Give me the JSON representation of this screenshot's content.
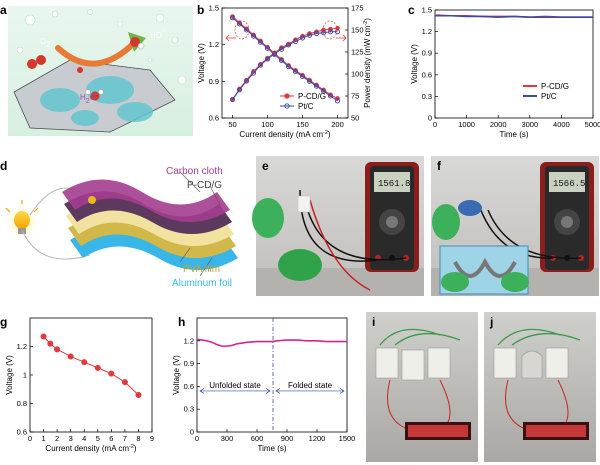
{
  "panels": {
    "a": {
      "letter": "a",
      "labels": {
        "o2": "O",
        "o2_sub": "2",
        "hox": "HO",
        "hox_sup": "-",
        "h2o": "H",
        "h2o_sub": "2",
        "h2o_o": "O"
      }
    },
    "b": {
      "letter": "b"
    },
    "c": {
      "letter": "c"
    },
    "d": {
      "letter": "d",
      "labels": [
        "Carbon cloth",
        "P-CD/G",
        "PVA film",
        "Aluminum foil"
      ]
    },
    "e": {
      "letter": "e",
      "display": "1561.8"
    },
    "f": {
      "letter": "f",
      "display": "1566.5"
    },
    "g": {
      "letter": "g"
    },
    "h": {
      "letter": "h"
    },
    "i": {
      "letter": "i"
    },
    "j": {
      "letter": "j"
    }
  },
  "colors": {
    "red": "#e0393e",
    "blue": "#3a4aa8",
    "magenta": "#d4268f",
    "purple": "#a43d8f",
    "yellow": "#f1e2a0",
    "cyan": "#38b6e8",
    "olive": "#d2b84a"
  },
  "chart_data": [
    {
      "id": "b",
      "type": "line",
      "xlabel": "Current density (mA cm",
      "xlabel_sup": "-2",
      "ylabel": "Voltage (V)",
      "y2label": "Power density (mW cm",
      "y2label_sup": "-2",
      "xlim": [
        35,
        215
      ],
      "ylim": [
        0.6,
        1.5
      ],
      "y2lim": [
        50,
        175
      ],
      "xticks": [
        50,
        100,
        150,
        200
      ],
      "yticks": [
        0.6,
        0.9,
        1.2,
        1.5
      ],
      "y2ticks": [
        50,
        75,
        100,
        125,
        150,
        175
      ],
      "legend": "bottom-right",
      "series": [
        {
          "name": "P-CD/G",
          "color": "#e0393e",
          "axis": "left",
          "x": [
            50,
            60,
            70,
            80,
            90,
            100,
            110,
            120,
            130,
            140,
            150,
            160,
            170,
            180,
            190,
            200
          ],
          "y": [
            1.43,
            1.38,
            1.33,
            1.28,
            1.23,
            1.18,
            1.13,
            1.08,
            1.03,
            0.99,
            0.95,
            0.91,
            0.87,
            0.83,
            0.79,
            0.76
          ]
        },
        {
          "name": "Pt/C",
          "color": "#3a4aa8",
          "axis": "left",
          "x": [
            50,
            60,
            70,
            80,
            90,
            100,
            110,
            120,
            130,
            140,
            150,
            160,
            170,
            180,
            190,
            200
          ],
          "y": [
            1.42,
            1.37,
            1.32,
            1.27,
            1.22,
            1.17,
            1.12,
            1.07,
            1.02,
            0.98,
            0.94,
            0.9,
            0.86,
            0.82,
            0.78,
            0.74
          ]
        },
        {
          "name": "P-CD/G power",
          "color": "#e0393e",
          "axis": "right",
          "x": [
            50,
            60,
            70,
            80,
            90,
            100,
            110,
            120,
            130,
            140,
            150,
            160,
            170,
            180,
            190,
            200
          ],
          "y": [
            71,
            83,
            93,
            103,
            111,
            118,
            124,
            130,
            134,
            139,
            143,
            146,
            148,
            150,
            151,
            152
          ]
        },
        {
          "name": "Pt/C power",
          "color": "#3a4aa8",
          "axis": "right",
          "x": [
            50,
            60,
            70,
            80,
            90,
            100,
            110,
            120,
            130,
            140,
            150,
            160,
            170,
            180,
            190,
            200
          ],
          "y": [
            71,
            82,
            92,
            101,
            110,
            117,
            123,
            128,
            133,
            137,
            141,
            144,
            146,
            147,
            148,
            148
          ]
        }
      ]
    },
    {
      "id": "c",
      "type": "line",
      "xlabel": "Time (s)",
      "ylabel": "Voltage (V)",
      "xlim": [
        0,
        5000
      ],
      "ylim": [
        0.0,
        1.5
      ],
      "xticks": [
        0,
        1000,
        2000,
        3000,
        4000,
        5000
      ],
      "yticks": [
        0.0,
        0.3,
        0.6,
        0.9,
        1.2,
        1.5
      ],
      "legend": "bottom-right",
      "series": [
        {
          "name": "P-CD/G",
          "color": "#e0393e",
          "x": [
            0,
            500,
            1000,
            1500,
            2000,
            2500,
            3000,
            3500,
            4000,
            4500,
            5000
          ],
          "y": [
            1.43,
            1.42,
            1.42,
            1.41,
            1.41,
            1.41,
            1.4,
            1.41,
            1.4,
            1.4,
            1.4
          ]
        },
        {
          "name": "Pt/C",
          "color": "#3a4aa8",
          "x": [
            0,
            500,
            1000,
            1500,
            2000,
            2500,
            3000,
            3500,
            4000,
            4500,
            5000
          ],
          "y": [
            1.42,
            1.42,
            1.41,
            1.41,
            1.4,
            1.41,
            1.4,
            1.4,
            1.4,
            1.4,
            1.4
          ]
        }
      ]
    },
    {
      "id": "g",
      "type": "line",
      "xlabel": "Current density (mA cm",
      "xlabel_sup": "-2",
      "ylabel": "Voltage (V)",
      "xlim": [
        0,
        9
      ],
      "ylim": [
        0.6,
        1.4
      ],
      "xticks": [
        0,
        1,
        2,
        3,
        4,
        5,
        6,
        7,
        8,
        9
      ],
      "yticks": [
        0.6,
        0.8,
        1.0,
        1.2
      ],
      "series": [
        {
          "name": "",
          "color": "#e0393e",
          "x": [
            1,
            1.5,
            2,
            3,
            4,
            5,
            6,
            7,
            8
          ],
          "y": [
            1.27,
            1.22,
            1.18,
            1.13,
            1.09,
            1.05,
            1.01,
            0.95,
            0.86
          ]
        }
      ]
    },
    {
      "id": "h",
      "type": "line",
      "xlabel": "Time (s)",
      "ylabel": "Voltage (V)",
      "xlim": [
        0,
        1500
      ],
      "ylim": [
        0.0,
        1.5
      ],
      "xticks": [
        0,
        300,
        600,
        900,
        1200,
        1500
      ],
      "yticks": [
        0.0,
        0.3,
        0.6,
        0.9,
        1.2
      ],
      "annotations": [
        "Unfolded state",
        "Folded state"
      ],
      "divider_x": 760,
      "series": [
        {
          "name": "",
          "color": "#d4268f",
          "x": [
            0,
            50,
            100,
            150,
            200,
            250,
            300,
            350,
            400,
            500,
            600,
            700,
            760,
            800,
            900,
            1000,
            1100,
            1200,
            1300,
            1400,
            1500
          ],
          "y": [
            1.22,
            1.21,
            1.2,
            1.18,
            1.15,
            1.13,
            1.13,
            1.14,
            1.16,
            1.18,
            1.19,
            1.19,
            1.19,
            1.2,
            1.21,
            1.21,
            1.2,
            1.2,
            1.19,
            1.19,
            1.19
          ]
        }
      ]
    }
  ]
}
